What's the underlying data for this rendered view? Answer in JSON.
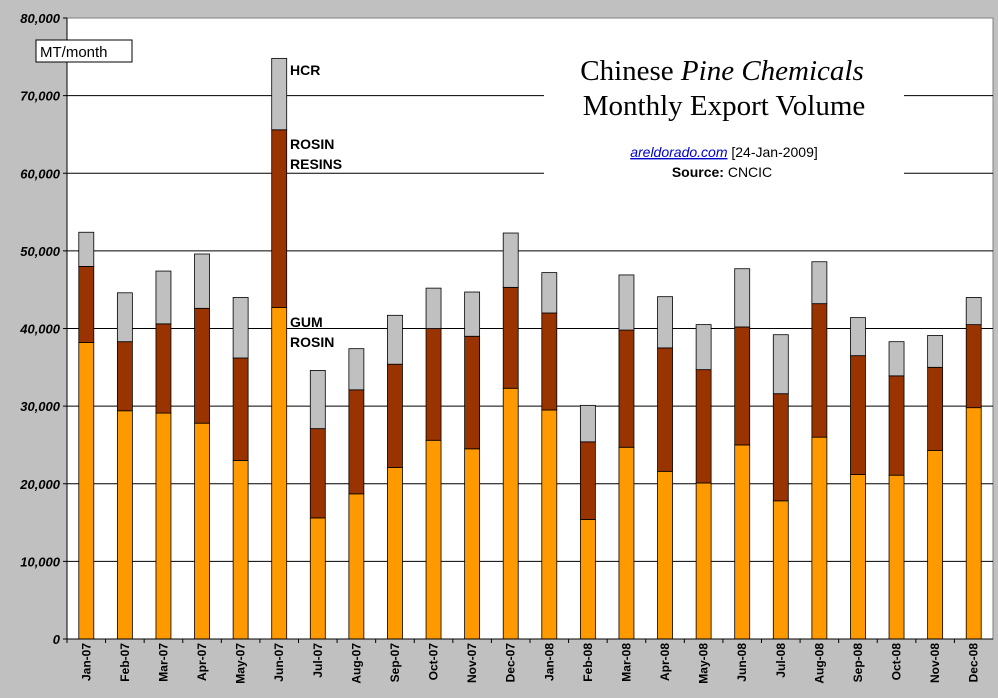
{
  "chart_data": {
    "type": "bar",
    "stacked": true,
    "title_line1_prefix": "Chinese ",
    "title_line1_italic": "Pine Chemicals",
    "title_line2": "Monthly Export Volume",
    "credit_link": "areldorado.com",
    "credit_date": "[24-Jan-2009]",
    "source_label": "Source:",
    "source_value": "CNCIC",
    "unit_label": "MT/month",
    "ylim": [
      0,
      80000
    ],
    "yticks": [
      0,
      10000,
      20000,
      30000,
      40000,
      50000,
      60000,
      70000,
      80000
    ],
    "ytick_labels": [
      "0",
      "10,000",
      "20,000",
      "30,000",
      "40,000",
      "50,000",
      "60,000",
      "70,000",
      "80,000"
    ],
    "grid": true,
    "categories": [
      "Jan-07",
      "Feb-07",
      "Mar-07",
      "Apr-07",
      "May-07",
      "Jun-07",
      "Jul-07",
      "Aug-07",
      "Sep-07",
      "Oct-07",
      "Nov-07",
      "Dec-07",
      "Jan-08",
      "Feb-08",
      "Mar-08",
      "Apr-08",
      "May-08",
      "Jun-08",
      "Jul-08",
      "Aug-08",
      "Sep-08",
      "Oct-08",
      "Nov-08",
      "Dec-08"
    ],
    "series": [
      {
        "name": "GUM ROSIN",
        "label_lines": [
          "GUM",
          "ROSIN"
        ],
        "color": "#ff9900",
        "values": [
          38200,
          29400,
          29100,
          27800,
          23000,
          42700,
          15600,
          18700,
          22100,
          25600,
          24500,
          32300,
          29500,
          15400,
          24700,
          21600,
          20100,
          25000,
          17800,
          26000,
          21200,
          21100,
          24300,
          29800
        ]
      },
      {
        "name": "ROSIN RESINS",
        "label_lines": [
          "ROSIN",
          "RESINS"
        ],
        "color": "#993300",
        "values": [
          9800,
          8900,
          11500,
          14800,
          13200,
          22900,
          11500,
          13400,
          13300,
          14400,
          14500,
          13000,
          12500,
          10000,
          15100,
          15900,
          14600,
          15200,
          13800,
          17200,
          15300,
          12800,
          10700,
          10700
        ]
      },
      {
        "name": "HCR",
        "label_lines": [
          "HCR"
        ],
        "color": "#c0c0c0",
        "values": [
          4400,
          6300,
          6800,
          7000,
          7800,
          9200,
          7500,
          5300,
          6300,
          5200,
          5700,
          7000,
          5200,
          4700,
          7100,
          6600,
          5800,
          7500,
          7600,
          5400,
          4900,
          4400,
          4100,
          3500
        ]
      }
    ]
  }
}
